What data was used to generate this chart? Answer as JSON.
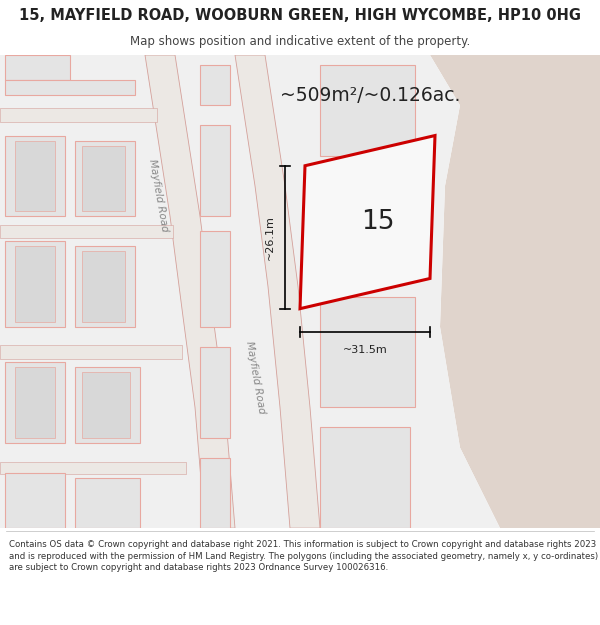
{
  "title": "15, MAYFIELD ROAD, WOOBURN GREEN, HIGH WYCOMBE, HP10 0HG",
  "subtitle": "Map shows position and indicative extent of the property.",
  "area_label": "~509m²/~0.126ac.",
  "house_number": "15",
  "dim_vertical": "~26.1m",
  "dim_horizontal": "~31.5m",
  "road_label_top": "Mayfield Road",
  "road_label_bottom": "Mayfield Road",
  "footer": "Contains OS data © Crown copyright and database right 2021. This information is subject to Crown copyright and database rights 2023 and is reproduced with the permission of HM Land Registry. The polygons (including the associated geometry, namely x, y co-ordinates) are subject to Crown copyright and database rights 2023 Ordnance Survey 100026316.",
  "fig_bg": "#ffffff",
  "map_bg": "#e8e8e8",
  "sand_color": "#e0d4cc",
  "road_fill": "#f0ece8",
  "road_edge": "#d4a09a",
  "building_fill": "#e8e8e8",
  "building_edge": "#e8a8a0",
  "property_fill": "#f8f8f8",
  "property_edge": "#cc0000",
  "text_color": "#222222",
  "road_text_color": "#888888",
  "figsize": [
    6.0,
    6.25
  ],
  "dpi": 100
}
